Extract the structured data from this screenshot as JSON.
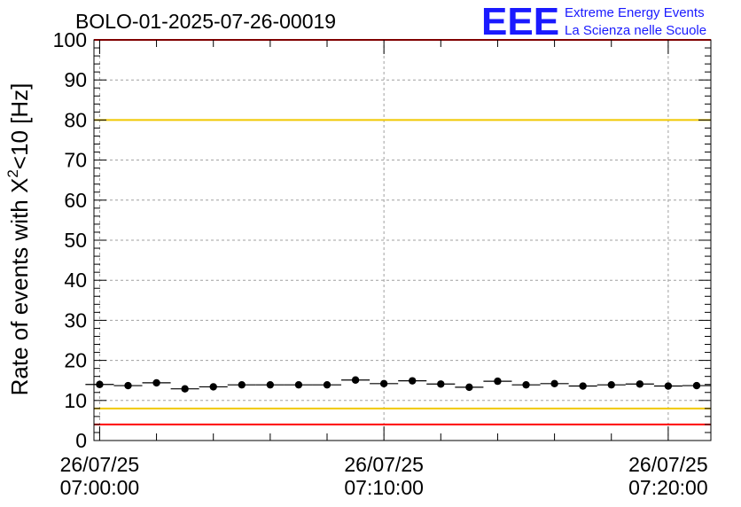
{
  "logo": {
    "mark": "EEE",
    "line1": "Extreme Energy Events",
    "line2": "La Scienza nelle Scuole"
  },
  "chart_data": {
    "type": "scatter",
    "title": "BOLO-01-2025-07-26-00019",
    "xlabel": "",
    "ylabel": "Rate of events with X",
    "ylabel_sup": "2",
    "ylabel_tail": "<10 [Hz]",
    "ylim": [
      0,
      100
    ],
    "xlim": [
      -0.2,
      21.5
    ],
    "y_ticks": [
      0,
      10,
      20,
      30,
      40,
      50,
      60,
      70,
      80,
      90,
      100
    ],
    "x_ticks": [
      {
        "x": 0,
        "date": "26/07/25",
        "time": "07:00:00"
      },
      {
        "x": 10,
        "date": "26/07/25",
        "time": "07:10:00"
      },
      {
        "x": 20,
        "date": "26/07/25",
        "time": "07:20:00"
      }
    ],
    "grid": true,
    "x_unit": "minutes after 07:00:00",
    "series": [
      {
        "x": [
          0,
          1,
          2,
          3,
          4,
          5,
          6,
          7,
          8,
          9,
          10,
          11,
          12,
          13,
          14,
          15,
          16,
          17,
          18,
          19,
          20,
          21
        ],
        "y": [
          14.0,
          13.7,
          14.4,
          12.9,
          13.4,
          13.9,
          13.9,
          13.9,
          13.9,
          15.1,
          14.2,
          14.9,
          14.1,
          13.3,
          14.8,
          13.9,
          14.2,
          13.6,
          13.9,
          14.1,
          13.6,
          13.7
        ],
        "xerr": 0.5,
        "color": "#000000"
      }
    ],
    "reference_lines": [
      {
        "y": 80,
        "color": "#f0c800"
      },
      {
        "y": 8,
        "color": "#f0c800"
      },
      {
        "y": 4,
        "color": "#ff0000"
      },
      {
        "y": 100,
        "color": "#ff0000"
      }
    ]
  }
}
